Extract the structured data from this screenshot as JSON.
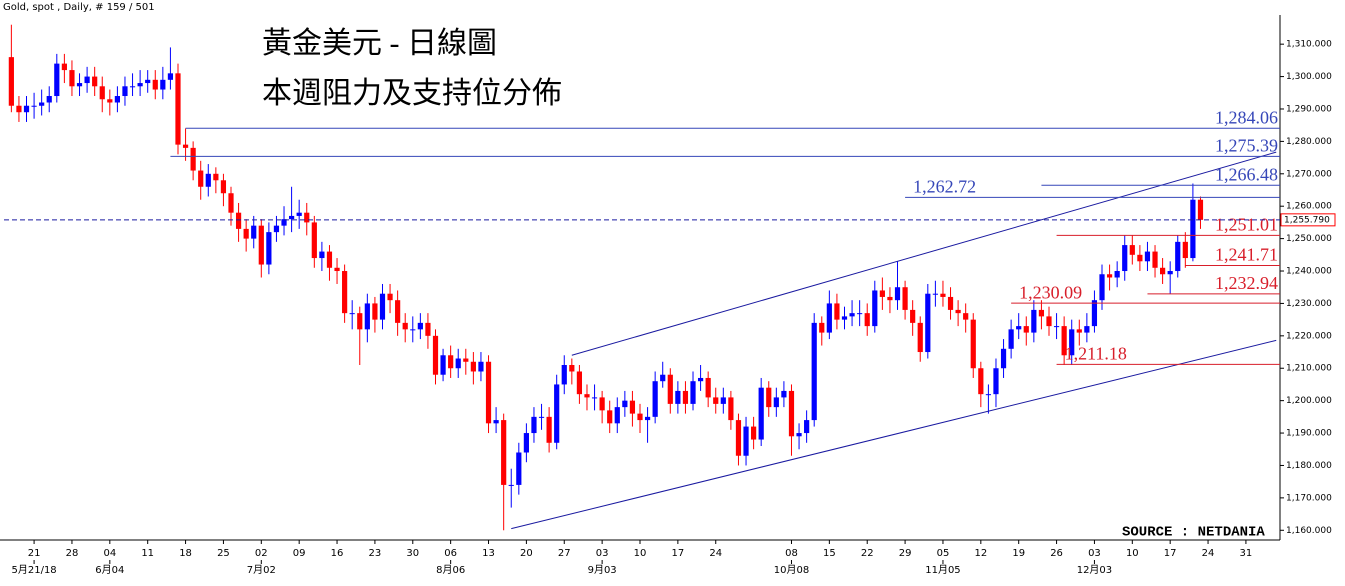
{
  "chart_data": {
    "type": "candlestick",
    "header": "Gold, spot , Daily, # 159 / 501",
    "title": "黃金美元 - 日線圖",
    "subtitle": "本週阻力及支持位分佈",
    "source": "SOURCE : NETDANIA",
    "up_color": "#0000ff",
    "down_color": "#ff0000",
    "ylim": [
      1157,
      1319
    ],
    "yticks": [
      {
        "value": 1160,
        "label": "1,160.000"
      },
      {
        "value": 1170,
        "label": "1,170.000"
      },
      {
        "value": 1180,
        "label": "1,180.000"
      },
      {
        "value": 1190,
        "label": "1,190.000"
      },
      {
        "value": 1200,
        "label": "1,200.000"
      },
      {
        "value": 1210,
        "label": "1,210.000"
      },
      {
        "value": 1220,
        "label": "1,220.000"
      },
      {
        "value": 1230,
        "label": "1,230.000"
      },
      {
        "value": 1240,
        "label": "1,240.000"
      },
      {
        "value": 1250,
        "label": "1,250.000"
      },
      {
        "value": 1260,
        "label": "1,260.000"
      },
      {
        "value": 1270,
        "label": "1,270.000"
      },
      {
        "value": 1280,
        "label": "1,280.000"
      },
      {
        "value": 1290,
        "label": "1,290.000"
      },
      {
        "value": 1300,
        "label": "1,300.000"
      },
      {
        "value": 1310,
        "label": "1,310.000"
      }
    ],
    "xlim": [
      -1.5,
      167.5
    ],
    "xticks": [
      {
        "value": 3,
        "label": "21"
      },
      {
        "value": 8,
        "label": "28"
      },
      {
        "value": 13,
        "label": "04"
      },
      {
        "value": 18,
        "label": "11"
      },
      {
        "value": 23,
        "label": "18"
      },
      {
        "value": 28,
        "label": "25"
      },
      {
        "value": 33,
        "label": "02"
      },
      {
        "value": 38,
        "label": "09"
      },
      {
        "value": 43,
        "label": "16"
      },
      {
        "value": 48,
        "label": "23"
      },
      {
        "value": 53,
        "label": "30"
      },
      {
        "value": 58,
        "label": "06"
      },
      {
        "value": 63,
        "label": "13"
      },
      {
        "value": 68,
        "label": "20"
      },
      {
        "value": 73,
        "label": "27"
      },
      {
        "value": 78,
        "label": "03"
      },
      {
        "value": 83,
        "label": "10"
      },
      {
        "value": 88,
        "label": "17"
      },
      {
        "value": 93,
        "label": "24"
      },
      {
        "value": 103,
        "label": "08"
      },
      {
        "value": 108,
        "label": "15"
      },
      {
        "value": 113,
        "label": "22"
      },
      {
        "value": 118,
        "label": "29"
      },
      {
        "value": 123,
        "label": "05"
      },
      {
        "value": 128,
        "label": "12"
      },
      {
        "value": 133,
        "label": "19"
      },
      {
        "value": 138,
        "label": "26"
      },
      {
        "value": 143,
        "label": "03"
      },
      {
        "value": 148,
        "label": "10"
      },
      {
        "value": 153,
        "label": "17"
      },
      {
        "value": 158,
        "label": "24"
      },
      {
        "value": 163,
        "label": "31"
      }
    ],
    "month_ticks": [
      {
        "value": 3,
        "label": "5月21/18"
      },
      {
        "value": 13,
        "label": "6月04"
      },
      {
        "value": 33,
        "label": "7月02"
      },
      {
        "value": 58,
        "label": "8月06"
      },
      {
        "value": 78,
        "label": "9月03"
      },
      {
        "value": 103,
        "label": "10月08"
      },
      {
        "value": 123,
        "label": "11月05"
      },
      {
        "value": 143,
        "label": "12月03"
      }
    ],
    "open": [
      1306,
      1291,
      1289,
      1291,
      1291,
      1292,
      1294,
      1304,
      1302,
      1297,
      1298,
      1300,
      1297,
      1293,
      1292,
      1294,
      1297,
      1297,
      1298,
      1299,
      1296,
      1299,
      1301,
      1279,
      1278,
      1271,
      1266,
      1270,
      1268,
      1264,
      1258,
      1253,
      1250,
      1254,
      1242,
      1252,
      1254,
      1256,
      1257,
      1258,
      1255,
      1244,
      1246,
      1241,
      1240,
      1227,
      1227,
      1222,
      1230,
      1225,
      1233,
      1231,
      1224,
      1222,
      1222,
      1224,
      1220,
      1208,
      1214,
      1210,
      1213,
      1212,
      1209,
      1212,
      1193,
      1194,
      1174,
      1174,
      1184,
      1190,
      1195,
      1195,
      1187,
      1205,
      1211,
      1209,
      1202,
      1201,
      1201,
      1197,
      1193,
      1198,
      1200,
      1196,
      1194,
      1195,
      1206,
      1208,
      1199,
      1203,
      1199,
      1206,
      1207,
      1201,
      1199,
      1201,
      1194,
      1183,
      1192,
      1188,
      1204,
      1198,
      1201,
      1203,
      1189,
      1190,
      1194,
      1224,
      1221,
      1230,
      1225,
      1226,
      1227,
      1227,
      1223,
      1234,
      1232,
      1231,
      1235,
      1228,
      1224,
      1215,
      1233,
      1233,
      1232,
      1228,
      1227,
      1225,
      1210,
      1202,
      1202,
      1210,
      1216,
      1222,
      1223,
      1221,
      1228,
      1226,
      1223,
      1223,
      1214,
      1222,
      1221,
      1223,
      1231,
      1239,
      1238,
      1240,
      1248,
      1245,
      1243,
      1246,
      1241,
      1239,
      1240,
      1249,
      1244,
      1262
    ],
    "high": [
      1316,
      1294,
      1294,
      1295,
      1296,
      1297,
      1307,
      1307,
      1305,
      1301,
      1303,
      1303,
      1300,
      1296,
      1297,
      1300,
      1301,
      1302,
      1302,
      1302,
      1303,
      1309,
      1304,
      1284,
      1280,
      1274,
      1273,
      1272,
      1270,
      1266,
      1261,
      1256,
      1257,
      1256,
      1255,
      1257,
      1260,
      1266,
      1262,
      1261,
      1257,
      1249,
      1248,
      1244,
      1242,
      1231,
      1229,
      1233,
      1232,
      1236,
      1236,
      1234,
      1227,
      1226,
      1227,
      1227,
      1222,
      1216,
      1217,
      1216,
      1216,
      1215,
      1215,
      1214,
      1198,
      1196,
      1179,
      1187,
      1193,
      1198,
      1199,
      1198,
      1208,
      1214,
      1213,
      1211,
      1205,
      1205,
      1203,
      1200,
      1201,
      1203,
      1203,
      1199,
      1198,
      1209,
      1212,
      1210,
      1206,
      1206,
      1209,
      1211,
      1209,
      1204,
      1204,
      1203,
      1196,
      1195,
      1195,
      1207,
      1206,
      1204,
      1206,
      1205,
      1193,
      1197,
      1227,
      1226,
      1234,
      1233,
      1229,
      1231,
      1231,
      1230,
      1237,
      1238,
      1235,
      1243,
      1237,
      1231,
      1226,
      1236,
      1237,
      1237,
      1235,
      1231,
      1230,
      1227,
      1212,
      1205,
      1213,
      1219,
      1225,
      1227,
      1226,
      1231,
      1231,
      1229,
      1227,
      1226,
      1225,
      1225,
      1227,
      1234,
      1242,
      1242,
      1243,
      1251,
      1251,
      1248,
      1249,
      1248,
      1244,
      1243,
      1251,
      1252,
      1267,
      1263
    ],
    "low": [
      1289,
      1286,
      1286,
      1287,
      1288,
      1289,
      1292,
      1298,
      1294,
      1294,
      1295,
      1294,
      1289,
      1288,
      1289,
      1291,
      1294,
      1294,
      1295,
      1293,
      1293,
      1296,
      1276,
      1274,
      1268,
      1262,
      1263,
      1264,
      1260,
      1254,
      1249,
      1246,
      1247,
      1238,
      1239,
      1249,
      1251,
      1252,
      1253,
      1251,
      1241,
      1240,
      1237,
      1236,
      1224,
      1222,
      1211,
      1218,
      1221,
      1222,
      1227,
      1220,
      1218,
      1218,
      1219,
      1216,
      1205,
      1206,
      1207,
      1207,
      1208,
      1205,
      1206,
      1190,
      1190,
      1160,
      1167,
      1171,
      1181,
      1187,
      1191,
      1184,
      1185,
      1202,
      1205,
      1199,
      1197,
      1197,
      1193,
      1190,
      1190,
      1195,
      1192,
      1190,
      1187,
      1193,
      1204,
      1196,
      1196,
      1196,
      1197,
      1203,
      1198,
      1196,
      1196,
      1191,
      1180,
      1180,
      1185,
      1186,
      1195,
      1195,
      1198,
      1183,
      1185,
      1187,
      1192,
      1217,
      1219,
      1222,
      1222,
      1223,
      1223,
      1220,
      1221,
      1228,
      1227,
      1228,
      1225,
      1220,
      1212,
      1213,
      1229,
      1229,
      1225,
      1223,
      1221,
      1207,
      1198,
      1196,
      1198,
      1207,
      1213,
      1219,
      1217,
      1218,
      1222,
      1220,
      1219,
      1211,
      1211,
      1217,
      1218,
      1221,
      1228,
      1234,
      1235,
      1237,
      1242,
      1240,
      1240,
      1238,
      1236,
      1233,
      1238,
      1241,
      1243,
      1253
    ],
    "close": [
      1291,
      1289,
      1291,
      1291,
      1292,
      1294,
      1304,
      1302,
      1297,
      1298,
      1300,
      1297,
      1293,
      1292,
      1294,
      1297,
      1297,
      1298,
      1299,
      1296,
      1299,
      1301,
      1279,
      1278,
      1271,
      1266,
      1270,
      1268,
      1264,
      1258,
      1253,
      1250,
      1254,
      1242,
      1252,
      1254,
      1256,
      1257,
      1258,
      1255,
      1244,
      1246,
      1241,
      1240,
      1227,
      1227,
      1222,
      1230,
      1225,
      1233,
      1231,
      1224,
      1222,
      1222,
      1224,
      1220,
      1208,
      1214,
      1210,
      1213,
      1212,
      1209,
      1212,
      1193,
      1194,
      1174,
      1174,
      1184,
      1190,
      1195,
      1195,
      1187,
      1205,
      1211,
      1209,
      1202,
      1201,
      1201,
      1197,
      1193,
      1198,
      1200,
      1196,
      1194,
      1195,
      1206,
      1208,
      1199,
      1203,
      1199,
      1206,
      1207,
      1201,
      1199,
      1201,
      1194,
      1183,
      1192,
      1188,
      1204,
      1198,
      1201,
      1203,
      1189,
      1190,
      1194,
      1224,
      1221,
      1230,
      1225,
      1226,
      1227,
      1227,
      1223,
      1234,
      1232,
      1231,
      1235,
      1228,
      1224,
      1215,
      1233,
      1233,
      1232,
      1228,
      1227,
      1225,
      1210,
      1202,
      1202,
      1210,
      1216,
      1222,
      1223,
      1221,
      1228,
      1226,
      1223,
      1223,
      1214,
      1222,
      1221,
      1223,
      1231,
      1239,
      1238,
      1240,
      1248,
      1245,
      1243,
      1246,
      1241,
      1239,
      1240,
      1249,
      1244,
      1262,
      1255.79
    ],
    "last_price": {
      "value": 1255.79,
      "label": "1,255.790"
    },
    "trendlines": [
      {
        "x": [
          74,
          167
        ],
        "y": [
          1214,
          1276.7
        ],
        "color": "#1a1aa0"
      },
      {
        "x": [
          66,
          167
        ],
        "y": [
          1160.5,
          1218.6
        ],
        "color": "#1a1aa0"
      }
    ],
    "levels": [
      {
        "value": 1284.06,
        "label": "1,284.06",
        "color": "#3546b8",
        "from": 23,
        "label_side": "right"
      },
      {
        "value": 1275.39,
        "label": "1,275.39",
        "color": "#3546b8",
        "from": 21,
        "label_side": "right"
      },
      {
        "value": 1266.48,
        "label": "1,266.48",
        "color": "#3546b8",
        "from": 136,
        "label_side": "right"
      },
      {
        "value": 1262.72,
        "label": "1,262.72",
        "color": "#3546b8",
        "from": 118,
        "label_side": "left"
      },
      {
        "value": 1251.01,
        "label": "1,251.01",
        "color": "#d81e2a",
        "from": 138,
        "label_side": "right"
      },
      {
        "value": 1241.71,
        "label": "1,241.71",
        "color": "#d81e2a",
        "from": 155,
        "label_side": "right"
      },
      {
        "value": 1232.94,
        "label": "1,232.94",
        "color": "#d81e2a",
        "from": 150,
        "label_side": "right"
      },
      {
        "value": 1230.09,
        "label": "1,230.09",
        "color": "#d81e2a",
        "from": 132,
        "label_side": "left"
      },
      {
        "value": 1211.18,
        "label": "1,211.18",
        "color": "#d81e2a",
        "from": 138,
        "label_side": "left"
      }
    ]
  }
}
